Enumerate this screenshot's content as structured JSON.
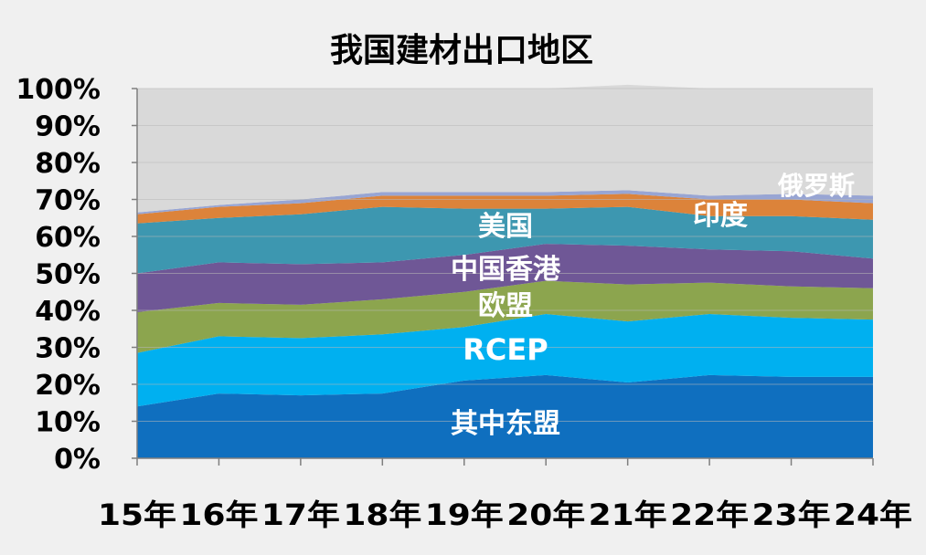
{
  "chart_data": {
    "type": "area",
    "stacked": true,
    "percent_axis": true,
    "title": "我国建材出口地区",
    "xlabel": "",
    "ylabel": "",
    "categories": [
      "15年",
      "16年",
      "17年",
      "18年",
      "19年",
      "20年",
      "21年",
      "22年",
      "23年",
      "24年"
    ],
    "ylim": [
      0,
      100
    ],
    "yticks": [
      "0%",
      "10%",
      "20%",
      "30%",
      "40%",
      "50%",
      "60%",
      "70%",
      "80%",
      "90%",
      "100%"
    ],
    "grid": true,
    "legend": "none",
    "series": [
      {
        "name": "其中东盟",
        "color": "#0f6fbf",
        "values": [
          14,
          17.5,
          17,
          17.5,
          21,
          22.5,
          20.5,
          22.5,
          22,
          22
        ]
      },
      {
        "name": "RCEP",
        "color": "#00b0f0",
        "values": [
          14.5,
          15.5,
          15.5,
          16,
          14.5,
          16.5,
          16.5,
          16.5,
          16,
          15.5
        ]
      },
      {
        "name": "欧盟",
        "color": "#8ca54e",
        "values": [
          11,
          9,
          9,
          9.5,
          9.5,
          9,
          10,
          8.5,
          8.5,
          8.5
        ]
      },
      {
        "name": "中国香港",
        "color": "#6f5796",
        "values": [
          10.5,
          11,
          11,
          10,
          10,
          10,
          10.5,
          9,
          9.5,
          8
        ]
      },
      {
        "name": "美国",
        "color": "#3d97b0",
        "values": [
          13.5,
          12,
          13.5,
          15,
          12.5,
          9.5,
          10.5,
          9,
          9.5,
          10.5
        ]
      },
      {
        "name": "印度",
        "color": "#dc833a",
        "values": [
          2.5,
          3,
          3,
          3,
          3.5,
          3.5,
          3.5,
          4.5,
          4.5,
          4.5
        ]
      },
      {
        "name": "俄罗斯",
        "color": "#98a5d3",
        "values": [
          0.5,
          0.5,
          1,
          1,
          1,
          1,
          1,
          1,
          1.5,
          2
        ]
      },
      {
        "name": "",
        "color": "#d9d9d9",
        "values": [
          33.5,
          31.5,
          30,
          28,
          28,
          28,
          28.5,
          29,
          28.5,
          29
        ]
      }
    ]
  }
}
